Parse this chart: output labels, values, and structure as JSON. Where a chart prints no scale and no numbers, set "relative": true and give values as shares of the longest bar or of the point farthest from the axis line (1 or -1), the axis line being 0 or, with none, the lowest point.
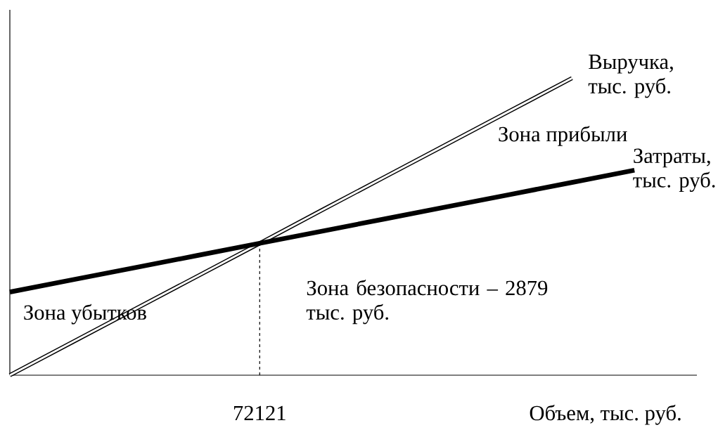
{
  "chart_data": {
    "type": "line",
    "relative": true,
    "xlabel": "Объем, тыс. руб.",
    "categories": [
      null,
      null,
      null,
      null,
      null,
      null,
      null,
      null,
      null,
      null,
      null,
      null
    ],
    "series": [
      {
        "name": "Выручка, тыс. руб.",
        "color": "#000000",
        "values": [
          0,
          0.111,
          0.222,
          0.333,
          0.444,
          0.556,
          0.667,
          0.778,
          0.889,
          1,
          null,
          null
        ]
      },
      {
        "name": "Затраты, тыс. руб.",
        "color": "#000000",
        "values": [
          0.28,
          0.321,
          0.362,
          0.403,
          0.444,
          0.485,
          0.526,
          0.567,
          0.608,
          0.649,
          0.69,
          null
        ]
      }
    ],
    "annotations": [
      "Зона прибыли",
      "Зона убытков",
      "Зона безопасности – 2879 тыс. руб.",
      "72121"
    ]
  }
}
